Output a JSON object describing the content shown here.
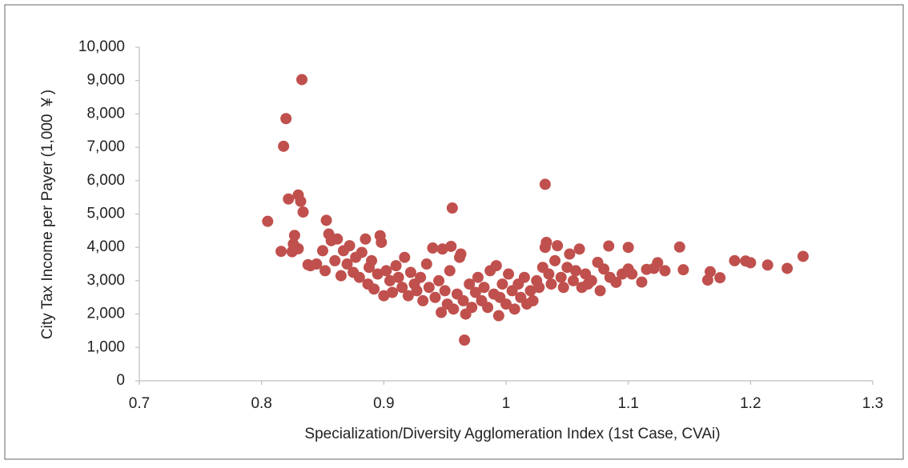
{
  "chart_data": {
    "type": "scatter",
    "x_label": "Specialization/Diversity Agglomeration Index (1st Case, CVAi)",
    "y_label": "City Tax Income per Payer (1,000 ￥)",
    "xlim": [
      0.7,
      1.3
    ],
    "xticks": [
      0.7,
      0.8,
      0.9,
      1,
      1.1,
      1.2,
      1.3
    ],
    "ylim": [
      0,
      10000
    ],
    "yticks": [
      0,
      {
        "value": 1000,
        "label": "1,000"
      },
      {
        "value": 2000,
        "label": "2,000"
      },
      {
        "value": 3000,
        "label": "3,000"
      },
      {
        "value": 4000,
        "label": "4,000"
      },
      {
        "value": 5000,
        "label": "5,000"
      },
      {
        "value": 6000,
        "label": "6,000"
      },
      {
        "value": 7000,
        "label": "7,000"
      },
      {
        "value": 8000,
        "label": "8,000"
      },
      {
        "value": 9000,
        "label": "9,000"
      },
      {
        "value": 10000,
        "label": "10,000"
      }
    ],
    "grid": false,
    "series": [
      {
        "color": "#c0504d",
        "x": [
          0.805,
          0.816,
          0.818,
          0.82,
          0.822,
          0.825,
          0.826,
          0.827,
          0.83,
          0.832,
          0.833,
          0.834,
          0.83,
          0.838,
          0.853,
          0.956,
          1.032,
          0.966,
          1.084,
          1.1,
          1.111,
          1.115,
          1.121,
          1.124,
          1.13,
          1.142,
          1.145,
          1.165,
          1.167,
          1.175,
          1.187,
          1.196,
          1.2,
          1.214,
          1.23,
          1.243,
          0.84,
          0.845,
          0.85,
          0.852,
          0.855,
          0.857,
          0.86,
          0.862,
          0.865,
          0.867,
          0.87,
          0.872,
          0.875,
          0.877,
          0.88,
          0.882,
          0.885,
          0.887,
          0.888,
          0.89,
          0.892,
          0.895,
          0.897,
          0.898,
          0.9,
          0.902,
          0.905,
          0.907,
          0.91,
          0.912,
          0.915,
          0.917,
          0.92,
          0.922,
          0.925,
          0.927,
          0.93,
          0.932,
          0.935,
          0.937,
          0.94,
          0.942,
          0.945,
          0.947,
          0.948,
          0.95,
          0.952,
          0.954,
          0.955,
          0.957,
          0.96,
          0.962,
          0.963,
          0.965,
          0.967,
          0.97,
          0.972,
          0.975,
          0.977,
          0.98,
          0.982,
          0.985,
          0.987,
          0.99,
          0.992,
          0.994,
          0.995,
          0.997,
          1.0,
          1.002,
          1.005,
          1.007,
          1.01,
          1.012,
          1.015,
          1.017,
          1.02,
          1.022,
          1.025,
          1.027,
          1.03,
          1.032,
          1.033,
          1.035,
          1.037,
          1.04,
          1.042,
          1.045,
          1.047,
          1.05,
          1.052,
          1.055,
          1.057,
          1.06,
          1.062,
          1.065,
          1.067,
          1.07,
          1.075,
          1.077,
          1.08,
          1.085,
          1.09,
          1.095,
          1.1,
          1.103
        ],
        "values": [
          4780,
          3880,
          7030,
          7860,
          5450,
          3870,
          4100,
          4360,
          5570,
          5380,
          9030,
          5060,
          3960,
          3480,
          4810,
          5180,
          5890,
          1220,
          4040,
          4000,
          2960,
          3340,
          3370,
          3540,
          3300,
          4010,
          3330,
          3020,
          3270,
          3090,
          3600,
          3590,
          3540,
          3470,
          3370,
          3730,
          3450,
          3500,
          3900,
          3300,
          4400,
          4200,
          3600,
          4250,
          3150,
          3900,
          3500,
          4050,
          3250,
          3700,
          3100,
          3850,
          4250,
          2900,
          3400,
          3600,
          2750,
          3200,
          4350,
          4150,
          2550,
          3300,
          3000,
          2650,
          3450,
          3100,
          2800,
          3700,
          2550,
          3250,
          2900,
          2700,
          3100,
          2400,
          3500,
          2800,
          3980,
          2500,
          3000,
          2050,
          3950,
          2700,
          2300,
          3300,
          4030,
          2150,
          2600,
          3700,
          3800,
          2400,
          2000,
          2900,
          2200,
          2650,
          3100,
          2400,
          2800,
          2200,
          3300,
          2600,
          3450,
          1950,
          2500,
          2900,
          2300,
          3200,
          2700,
          2150,
          2900,
          2500,
          3100,
          2300,
          2700,
          2400,
          3000,
          2800,
          3400,
          4000,
          4150,
          3200,
          2900,
          3600,
          4050,
          3100,
          2800,
          3400,
          3800,
          3000,
          3300,
          3950,
          2800,
          3200,
          2900,
          3000,
          3550,
          2700,
          3350,
          3100,
          2950,
          3200,
          3350,
          3200
        ]
      }
    ]
  }
}
